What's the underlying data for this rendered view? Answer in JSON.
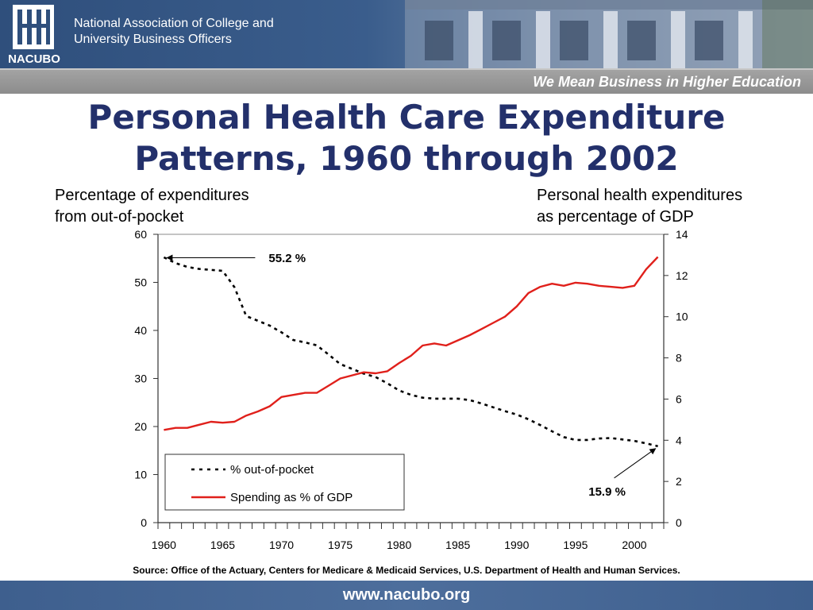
{
  "header": {
    "logo_text": "NACUBO",
    "org_name_line1": "National Association of College and",
    "org_name_line2": "University Business Officers",
    "tagline": "We Mean Business in Higher Education"
  },
  "slide": {
    "title_line1": "Personal Health Care Expenditure",
    "title_line2": "Patterns, 1960 through 2002",
    "title_color": "#23306b",
    "left_axis_label_line1": "Percentage of expenditures",
    "left_axis_label_line2": "from out-of-pocket",
    "right_axis_label_line1": "Personal health expenditures",
    "right_axis_label_line2": "as percentage of GDP",
    "source": "Source: Office of the Actuary, Centers for Medicare & Medicaid Services, U.S. Department of Health and Human Services."
  },
  "footer": {
    "url": "www.nacubo.org"
  },
  "chart_data": {
    "type": "line",
    "title": "",
    "xlabel": "",
    "x_ticks": [
      1960,
      1965,
      1970,
      1975,
      1980,
      1985,
      1990,
      1995,
      2000
    ],
    "x_range": [
      1960,
      2002
    ],
    "y_left": {
      "range": [
        0,
        60
      ],
      "ticks": [
        0,
        10,
        20,
        30,
        40,
        50,
        60
      ]
    },
    "y_right": {
      "range": [
        0,
        14
      ],
      "ticks": [
        0,
        2,
        4,
        6,
        8,
        10,
        12,
        14
      ]
    },
    "grid": false,
    "legend_position": "bottom-left",
    "series": [
      {
        "name": "% out-of-pocket",
        "axis": "left",
        "style": "dashed",
        "color": "#000000",
        "x": [
          1960,
          1961,
          1962,
          1963,
          1964,
          1965,
          1966,
          1967,
          1968,
          1969,
          1970,
          1971,
          1972,
          1973,
          1974,
          1975,
          1976,
          1977,
          1978,
          1979,
          1980,
          1981,
          1982,
          1983,
          1984,
          1985,
          1986,
          1987,
          1988,
          1989,
          1990,
          1991,
          1992,
          1993,
          1994,
          1995,
          1996,
          1997,
          1998,
          1999,
          2000,
          2001,
          2002
        ],
        "y": [
          55.2,
          54,
          53.2,
          52.8,
          52.6,
          52.4,
          49,
          43,
          42,
          41,
          39.6,
          38,
          37.5,
          36.9,
          35,
          33,
          32,
          31,
          30.3,
          29,
          27.5,
          26.6,
          26,
          25.8,
          25.8,
          25.8,
          25.5,
          24.8,
          24,
          23.2,
          22.5,
          21.5,
          20.3,
          19,
          17.8,
          17.2,
          17.2,
          17.5,
          17.6,
          17.3,
          17,
          16.5,
          15.9
        ]
      },
      {
        "name": "Spending as % of GDP",
        "axis": "right",
        "style": "solid",
        "color": "#e0201b",
        "x": [
          1960,
          1961,
          1962,
          1963,
          1964,
          1965,
          1966,
          1967,
          1968,
          1969,
          1970,
          1971,
          1972,
          1973,
          1974,
          1975,
          1976,
          1977,
          1978,
          1979,
          1980,
          1981,
          1982,
          1983,
          1984,
          1985,
          1986,
          1987,
          1988,
          1989,
          1990,
          1991,
          1992,
          1993,
          1994,
          1995,
          1996,
          1997,
          1998,
          1999,
          2000,
          2001,
          2002
        ],
        "y": [
          4.5,
          4.6,
          4.6,
          4.75,
          4.9,
          4.85,
          4.9,
          5.2,
          5.4,
          5.65,
          6.1,
          6.2,
          6.3,
          6.3,
          6.65,
          7.0,
          7.15,
          7.3,
          7.25,
          7.35,
          7.75,
          8.1,
          8.6,
          8.7,
          8.6,
          8.85,
          9.1,
          9.4,
          9.7,
          10.0,
          10.5,
          11.15,
          11.45,
          11.6,
          11.5,
          11.65,
          11.6,
          11.5,
          11.45,
          11.4,
          11.5,
          12.3,
          12.9
        ]
      }
    ],
    "annotations": [
      {
        "text": "55.2 %",
        "series": "% out-of-pocket",
        "x": 1960,
        "y": 55.2
      },
      {
        "text": "15.9 %",
        "series": "% out-of-pocket",
        "x": 2002,
        "y": 15.9
      }
    ]
  }
}
